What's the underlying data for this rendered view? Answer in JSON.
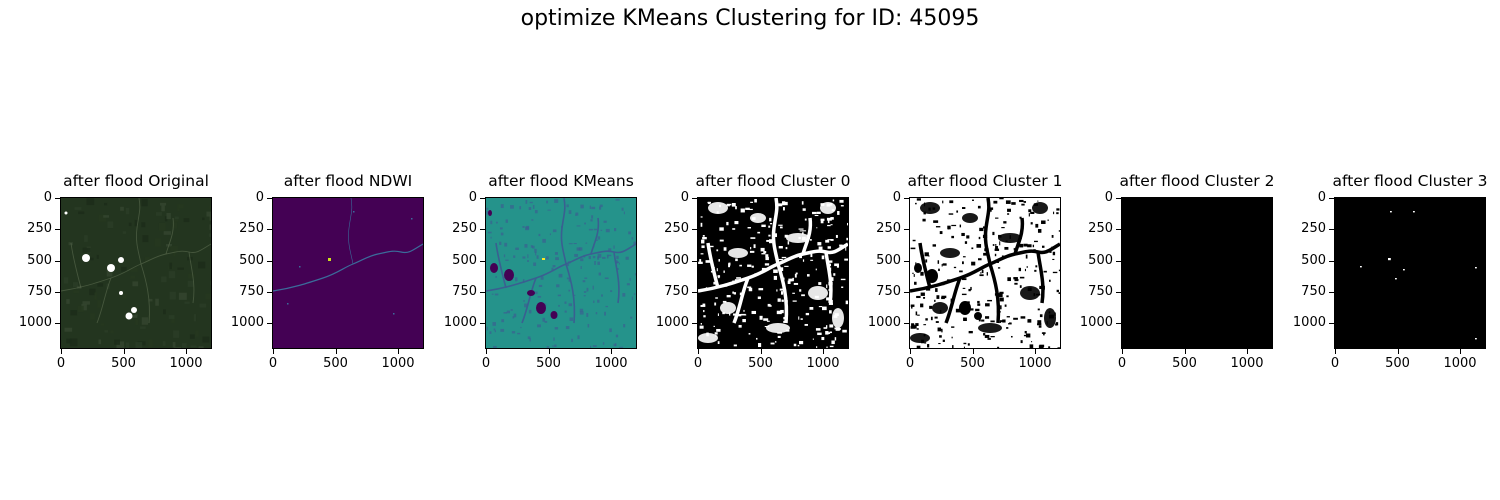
{
  "figure": {
    "suptitle": "optimize KMeans Clustering for ID: 45095"
  },
  "chart_data": [
    {
      "type": "image",
      "title": "after flood Original",
      "colormap": "rgb",
      "xticks": [
        "0",
        "500",
        "1000"
      ],
      "yticks": [
        "0",
        "250",
        "500",
        "750",
        "1000"
      ],
      "xlim": [
        0,
        1200
      ],
      "ylim": [
        1200,
        0
      ],
      "colors": {
        "background": "#23351f",
        "features": "#5e6e52",
        "highlight": "#ffffff"
      }
    },
    {
      "type": "image",
      "title": "after flood NDWI",
      "colormap": "viridis",
      "xticks": [
        "0",
        "500",
        "1000"
      ],
      "yticks": [
        "0",
        "250",
        "500",
        "750",
        "1000"
      ],
      "xlim": [
        0,
        1200
      ],
      "ylim": [
        1200,
        0
      ],
      "colors": {
        "background": "#440154",
        "features": "#3b6b9a",
        "highlight": "#cde11d"
      }
    },
    {
      "type": "image",
      "title": "after flood KMeans",
      "colormap": "viridis",
      "xticks": [
        "0",
        "500",
        "1000"
      ],
      "yticks": [
        "0",
        "250",
        "500",
        "750",
        "1000"
      ],
      "xlim": [
        0,
        1200
      ],
      "ylim": [
        1200,
        0
      ],
      "colors": {
        "background": "#25938b",
        "features": "#3a5f91",
        "highlight": "#440154"
      }
    },
    {
      "type": "image",
      "title": "after flood Cluster 0",
      "colormap": "gray",
      "xticks": [
        "0",
        "500",
        "1000"
      ],
      "yticks": [
        "0",
        "250",
        "500",
        "750",
        "1000"
      ],
      "xlim": [
        0,
        1200
      ],
      "ylim": [
        1200,
        0
      ],
      "colors": {
        "background": "#000000",
        "features": "#ffffff",
        "highlight": "#ffffff"
      }
    },
    {
      "type": "image",
      "title": "after flood Cluster 1",
      "colormap": "gray",
      "xticks": [
        "0",
        "500",
        "1000"
      ],
      "yticks": [
        "0",
        "250",
        "500",
        "750",
        "1000"
      ],
      "xlim": [
        0,
        1200
      ],
      "ylim": [
        1200,
        0
      ],
      "colors": {
        "background": "#ffffff",
        "features": "#000000",
        "highlight": "#000000"
      }
    },
    {
      "type": "image",
      "title": "after flood Cluster 2",
      "colormap": "gray",
      "xticks": [
        "0",
        "500",
        "1000"
      ],
      "yticks": [
        "0",
        "250",
        "500",
        "750",
        "1000"
      ],
      "xlim": [
        0,
        1200
      ],
      "ylim": [
        1200,
        0
      ],
      "colors": {
        "background": "#000000",
        "features": "#000000",
        "highlight": "#000000"
      }
    },
    {
      "type": "image",
      "title": "after flood Cluster 3",
      "colormap": "gray",
      "xticks": [
        "0",
        "500",
        "1000"
      ],
      "yticks": [
        "0",
        "250",
        "500",
        "750",
        "1000"
      ],
      "xlim": [
        0,
        1200
      ],
      "ylim": [
        1200,
        0
      ],
      "colors": {
        "background": "#000000",
        "features": "#000000",
        "highlight": "#ffffff"
      }
    }
  ]
}
